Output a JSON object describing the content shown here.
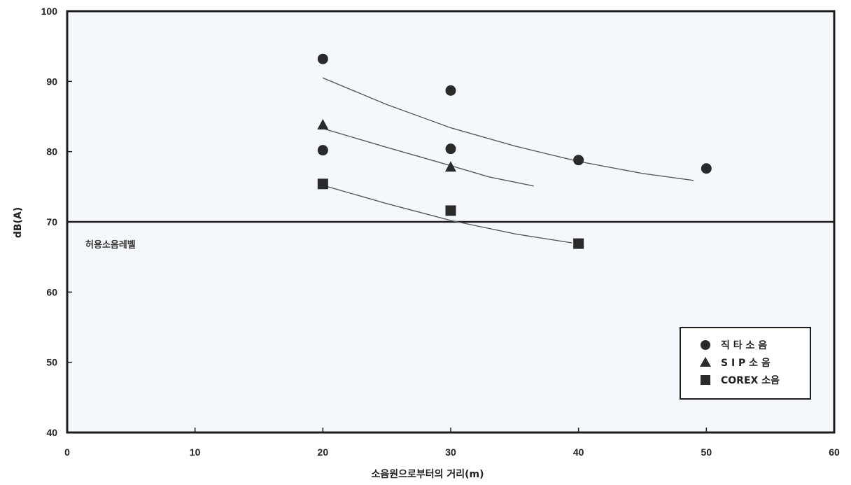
{
  "chart_data": {
    "type": "scatter",
    "xlabel": "소음원으로부터의 거리(m)",
    "ylabel": "dB(A)",
    "xlim": [
      0,
      60
    ],
    "ylim": [
      40,
      100
    ],
    "x_ticks": [
      "0",
      "10",
      "20",
      "30",
      "40",
      "50",
      "60"
    ],
    "y_ticks": [
      "40",
      "50",
      "60",
      "70",
      "80",
      "90",
      "100"
    ],
    "grid": false,
    "legend_position": "bottom-right",
    "reference_line": {
      "y": 70,
      "label": "허용소음레벨"
    },
    "series": [
      {
        "name": "직 타 소 음",
        "marker": "circle",
        "color": "#2a2a2a",
        "points": [
          [
            20,
            93.2
          ],
          [
            20,
            80.2
          ],
          [
            30,
            88.7
          ],
          [
            30,
            80.4
          ],
          [
            40,
            78.8
          ],
          [
            50,
            77.6
          ]
        ],
        "trend": [
          [
            20,
            90.5
          ],
          [
            25,
            86.7
          ],
          [
            30,
            83.4
          ],
          [
            35,
            80.8
          ],
          [
            40,
            78.6
          ],
          [
            45,
            76.9
          ],
          [
            49,
            75.9
          ]
        ]
      },
      {
        "name": "S I P 소 음",
        "marker": "triangle",
        "color": "#2a2a2a",
        "points": [
          [
            20,
            83.8
          ],
          [
            30,
            77.8
          ]
        ],
        "trend": [
          [
            20,
            83.3
          ],
          [
            25,
            80.6
          ],
          [
            30,
            78.0
          ],
          [
            33,
            76.4
          ],
          [
            36.5,
            75.1
          ]
        ]
      },
      {
        "name": "COREX 소음",
        "marker": "square",
        "color": "#2a2a2a",
        "points": [
          [
            20,
            75.4
          ],
          [
            30,
            71.6
          ],
          [
            40,
            66.9
          ]
        ],
        "trend": [
          [
            20,
            75.2
          ],
          [
            25,
            72.6
          ],
          [
            30,
            70.2
          ],
          [
            35,
            68.3
          ],
          [
            39.5,
            67.0
          ]
        ]
      }
    ]
  }
}
